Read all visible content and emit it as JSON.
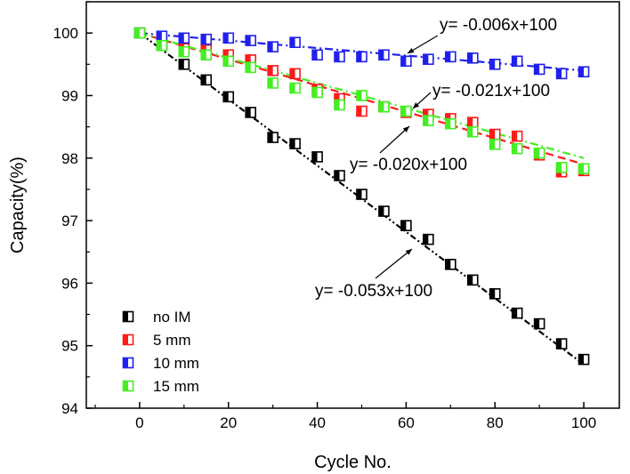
{
  "chart_data": {
    "type": "scatter",
    "title": "",
    "xlabel": "Cycle No.",
    "ylabel": "Capacity(%)",
    "xlim": [
      -12,
      108
    ],
    "ylim": [
      94,
      100.5
    ],
    "xticks": [
      0,
      20,
      40,
      60,
      80,
      100
    ],
    "yticks": [
      94,
      95,
      96,
      97,
      98,
      99,
      100
    ],
    "legend_position": "bottom-left",
    "series": [
      {
        "name": "no IM",
        "color": "#000000",
        "x": [
          0,
          5,
          10,
          15,
          20,
          25,
          30,
          35,
          40,
          45,
          50,
          55,
          60,
          65,
          70,
          75,
          80,
          85,
          90,
          95,
          100
        ],
        "values": [
          100,
          99.8,
          99.5,
          99.25,
          98.98,
          98.73,
          98.33,
          98.23,
          98.02,
          97.72,
          97.42,
          97.15,
          96.92,
          96.7,
          96.3,
          96.05,
          95.83,
          95.52,
          95.35,
          95.03,
          94.78
        ],
        "fit": {
          "slope": -0.053,
          "intercept": 100,
          "style": "dash-dot-dot"
        }
      },
      {
        "name": "5 mm",
        "color": "#ff1a1a",
        "x": [
          0,
          5,
          10,
          15,
          20,
          25,
          30,
          35,
          40,
          45,
          50,
          55,
          60,
          65,
          70,
          75,
          80,
          85,
          90,
          95,
          100
        ],
        "values": [
          100,
          99.85,
          99.75,
          99.73,
          99.65,
          99.57,
          99.4,
          99.35,
          99.1,
          98.95,
          98.75,
          98.82,
          98.73,
          98.7,
          98.63,
          98.57,
          98.38,
          98.35,
          98.05,
          97.78,
          97.8
        ],
        "fit": {
          "slope": -0.021,
          "intercept": 100,
          "style": "dash"
        }
      },
      {
        "name": "10 mm",
        "color": "#2020ee",
        "x": [
          0,
          5,
          10,
          15,
          20,
          25,
          30,
          35,
          40,
          45,
          50,
          55,
          60,
          65,
          70,
          75,
          80,
          85,
          90,
          95,
          100
        ],
        "values": [
          100,
          99.95,
          99.92,
          99.9,
          99.92,
          99.88,
          99.78,
          99.85,
          99.65,
          99.62,
          99.62,
          99.65,
          99.55,
          99.58,
          99.62,
          99.6,
          99.5,
          99.55,
          99.42,
          99.35,
          99.38
        ],
        "fit": {
          "slope": -0.006,
          "intercept": 100,
          "style": "dash-dot"
        }
      },
      {
        "name": "15 mm",
        "color": "#44ee22",
        "x": [
          0,
          5,
          10,
          15,
          20,
          25,
          30,
          35,
          40,
          45,
          50,
          55,
          60,
          65,
          70,
          75,
          80,
          85,
          90,
          95,
          100
        ],
        "values": [
          100,
          99.8,
          99.7,
          99.65,
          99.55,
          99.45,
          99.2,
          99.12,
          99.05,
          98.85,
          99.0,
          98.82,
          98.75,
          98.6,
          98.55,
          98.42,
          98.22,
          98.15,
          98.08,
          97.85,
          97.83
        ],
        "fit": {
          "slope": -0.02,
          "intercept": 100,
          "style": "dash-dot"
        }
      }
    ],
    "annotations": [
      {
        "text": "y= -0.006x+100",
        "series": "10 mm"
      },
      {
        "text": "y= -0.021x+100",
        "series": "5 mm"
      },
      {
        "text": "y= -0.020x+100",
        "series": "15 mm"
      },
      {
        "text": "y= -0.053x+100",
        "series": "no IM"
      }
    ]
  }
}
